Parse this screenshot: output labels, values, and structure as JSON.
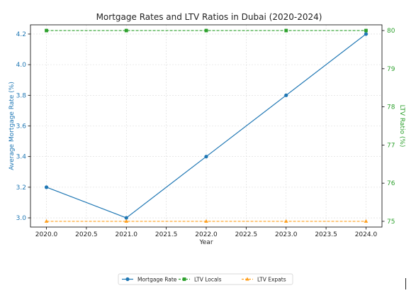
{
  "chart_data": {
    "type": "line",
    "title": "Mortgage Rates and LTV Ratios in Dubai (2020-2024)",
    "xlabel": "Year",
    "ylabel_left": "Average Mortgage Rate (%)",
    "ylabel_right": "LTV Ratio (%)",
    "x": [
      2020,
      2021,
      2022,
      2023,
      2024
    ],
    "xlim": [
      2019.8,
      2024.2
    ],
    "x_ticks": [
      "2020.0",
      "2020.5",
      "2021.0",
      "2021.5",
      "2022.0",
      "2022.5",
      "2023.0",
      "2023.5",
      "2024.0"
    ],
    "ylim_left": [
      2.94,
      4.26
    ],
    "left_ticks": [
      "3.0",
      "3.2",
      "3.4",
      "3.6",
      "3.8",
      "4.0",
      "4.2"
    ],
    "ylim_right": [
      74.85,
      80.15
    ],
    "right_ticks": [
      "75",
      "76",
      "77",
      "78",
      "79",
      "80"
    ],
    "grid": true,
    "legend_position": "bottom-center",
    "series": [
      {
        "name": "Mortgage Rate",
        "axis": "left",
        "values": [
          3.2,
          3.0,
          3.4,
          3.8,
          4.2
        ],
        "color": "#1f77b4",
        "marker": "circle",
        "linestyle": "solid"
      },
      {
        "name": "LTV Locals",
        "axis": "right",
        "values": [
          80,
          80,
          80,
          80,
          80
        ],
        "color": "#2ca02c",
        "marker": "square",
        "linestyle": "dashed"
      },
      {
        "name": "LTV Expats",
        "axis": "right",
        "values": [
          75,
          75,
          75,
          75,
          75
        ],
        "color": "#ff9f1c",
        "marker": "triangle",
        "linestyle": "dashed"
      }
    ],
    "left_axis_color": "#1f77b4",
    "right_axis_color": "#2ca02c"
  }
}
